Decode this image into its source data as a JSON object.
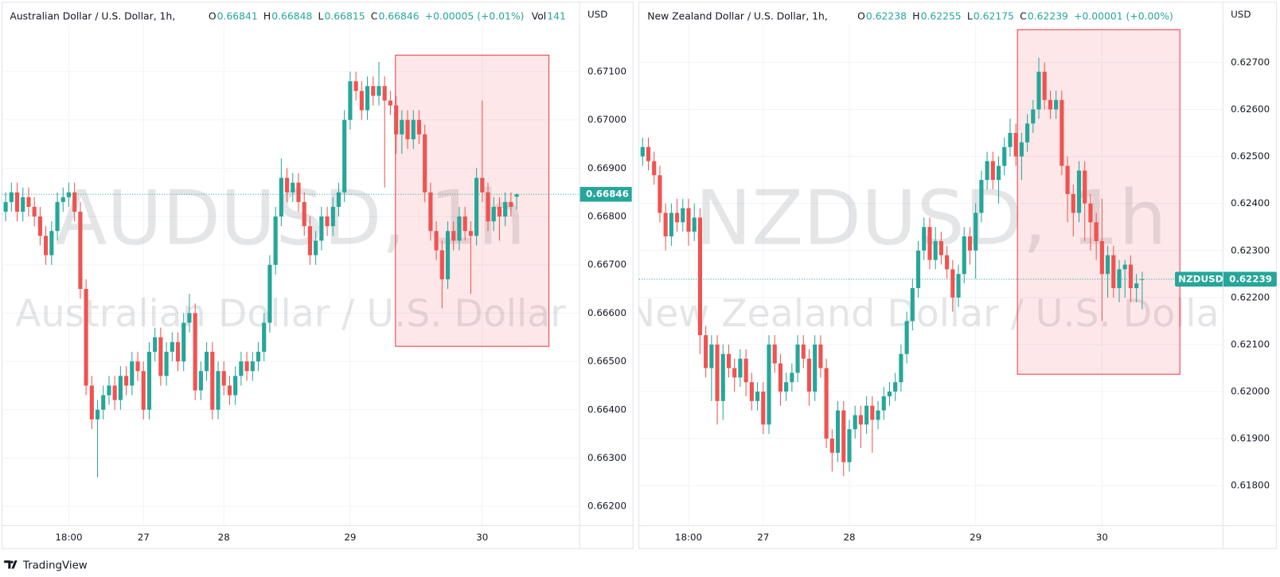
{
  "chart_data": [
    {
      "type": "candlestick",
      "header": "Australian Dollar / U.S. Dollar, 1h,",
      "ohlc_labels": [
        "O",
        "H",
        "L",
        "C"
      ],
      "change": "+0.00005 (+0.01%)",
      "volume_label": "Vol",
      "volume": 141,
      "watermark_symbol": "AUDUSD, 1h",
      "watermark_name": "Australian Dollar / U.S. Dollar",
      "axis_unit": "USD",
      "up_color": "#26a69a",
      "down_color": "#ef5350",
      "grid": true,
      "ylim": [
        0.66161,
        0.67197
      ],
      "xlim": [
        -0.7,
        99.9
      ],
      "yticks": [
        {
          "value": 0.662,
          "label": "0.66200"
        },
        {
          "value": 0.663,
          "label": "0.66300"
        },
        {
          "value": 0.664,
          "label": "0.66400"
        },
        {
          "value": 0.665,
          "label": "0.66500"
        },
        {
          "value": 0.666,
          "label": "0.66600"
        },
        {
          "value": 0.667,
          "label": "0.66700"
        },
        {
          "value": 0.668,
          "label": "0.66800"
        },
        {
          "value": 0.669,
          "label": "0.66900"
        },
        {
          "value": 0.67,
          "label": "0.67000"
        },
        {
          "value": 0.671,
          "label": "0.67100"
        }
      ],
      "xticks": [
        {
          "value": 11,
          "label": "18:00"
        },
        {
          "value": 24,
          "label": "27"
        },
        {
          "value": 38,
          "label": "28"
        },
        {
          "value": 60,
          "label": "29"
        },
        {
          "value": 83,
          "label": "30"
        }
      ],
      "open": [
        0.6681,
        0.6683,
        0.6685,
        0.6681,
        0.6684,
        0.6682,
        0.668,
        0.6676,
        0.6672,
        0.6677,
        0.6683,
        0.6684,
        0.6685,
        0.6681,
        0.6665,
        0.6645,
        0.6638,
        0.664,
        0.6643,
        0.6645,
        0.6642,
        0.6647,
        0.6645,
        0.665,
        0.6648,
        0.664,
        0.6652,
        0.6655,
        0.6647,
        0.6652,
        0.6654,
        0.665,
        0.6658,
        0.666,
        0.6644,
        0.6648,
        0.6652,
        0.664,
        0.6648,
        0.6645,
        0.6643,
        0.6647,
        0.665,
        0.6648,
        0.665,
        0.6652,
        0.6658,
        0.667,
        0.668,
        0.6688,
        0.6685,
        0.6687,
        0.6683,
        0.6678,
        0.6672,
        0.6675,
        0.668,
        0.6678,
        0.6682,
        0.6685,
        0.67,
        0.6708,
        0.6706,
        0.6702,
        0.6707,
        0.6705,
        0.6707,
        0.6704,
        0.6703,
        0.6697,
        0.67,
        0.6696,
        0.67,
        0.6697,
        0.6685,
        0.6677,
        0.6673,
        0.6667,
        0.6677,
        0.6675,
        0.668,
        0.6677,
        0.6676,
        0.6688,
        0.6685,
        0.6679,
        0.6682,
        0.668,
        0.6683,
        0.66841
      ],
      "high": [
        0.6685,
        0.6687,
        0.6687,
        0.6686,
        0.6686,
        0.6684,
        0.6682,
        0.6678,
        0.6679,
        0.6685,
        0.6686,
        0.6687,
        0.6687,
        0.6683,
        0.6667,
        0.6647,
        0.6642,
        0.6645,
        0.6647,
        0.6647,
        0.6649,
        0.6649,
        0.6652,
        0.6652,
        0.665,
        0.6654,
        0.6657,
        0.6657,
        0.6654,
        0.6656,
        0.6656,
        0.666,
        0.6664,
        0.6662,
        0.665,
        0.6654,
        0.6654,
        0.665,
        0.665,
        0.6647,
        0.6649,
        0.6652,
        0.6652,
        0.6652,
        0.6654,
        0.666,
        0.6672,
        0.6682,
        0.6692,
        0.669,
        0.6689,
        0.6689,
        0.6685,
        0.668,
        0.6677,
        0.6682,
        0.6682,
        0.6684,
        0.6687,
        0.6702,
        0.671,
        0.671,
        0.6708,
        0.6709,
        0.6709,
        0.6712,
        0.6709,
        0.6706,
        0.6705,
        0.6702,
        0.6702,
        0.6702,
        0.6702,
        0.6699,
        0.6687,
        0.6679,
        0.6675,
        0.6679,
        0.6679,
        0.6682,
        0.6682,
        0.6679,
        0.669,
        0.6704,
        0.6687,
        0.6684,
        0.6684,
        0.6685,
        0.6685,
        0.66848
      ],
      "low": [
        0.6679,
        0.6681,
        0.6679,
        0.6679,
        0.668,
        0.6678,
        0.6674,
        0.667,
        0.667,
        0.6675,
        0.6681,
        0.6682,
        0.6679,
        0.6663,
        0.6643,
        0.6636,
        0.6626,
        0.6638,
        0.6641,
        0.664,
        0.664,
        0.6643,
        0.6643,
        0.6646,
        0.6638,
        0.6638,
        0.665,
        0.6645,
        0.6645,
        0.665,
        0.6648,
        0.6648,
        0.6656,
        0.6642,
        0.6642,
        0.6646,
        0.6638,
        0.6638,
        0.6643,
        0.6641,
        0.6641,
        0.6645,
        0.6646,
        0.6646,
        0.6648,
        0.665,
        0.6656,
        0.6668,
        0.6678,
        0.6683,
        0.6683,
        0.6681,
        0.6676,
        0.667,
        0.667,
        0.6673,
        0.6676,
        0.6676,
        0.668,
        0.6683,
        0.6698,
        0.6704,
        0.67,
        0.67,
        0.6703,
        0.6703,
        0.6686,
        0.6701,
        0.6693,
        0.6693,
        0.6694,
        0.6694,
        0.6695,
        0.6683,
        0.6675,
        0.6671,
        0.6661,
        0.6665,
        0.6673,
        0.6673,
        0.6675,
        0.6664,
        0.6674,
        0.6683,
        0.6677,
        0.6677,
        0.6675,
        0.6678,
        0.668,
        0.66815
      ],
      "close": [
        0.6683,
        0.6685,
        0.6681,
        0.6684,
        0.6682,
        0.668,
        0.6676,
        0.6672,
        0.6677,
        0.6683,
        0.6684,
        0.6685,
        0.6681,
        0.6665,
        0.6645,
        0.6638,
        0.664,
        0.6643,
        0.6645,
        0.6642,
        0.6647,
        0.6645,
        0.665,
        0.6648,
        0.664,
        0.6652,
        0.6655,
        0.6647,
        0.6652,
        0.6654,
        0.665,
        0.6658,
        0.666,
        0.6644,
        0.6648,
        0.6652,
        0.664,
        0.6648,
        0.6645,
        0.6643,
        0.6647,
        0.665,
        0.6648,
        0.665,
        0.6652,
        0.6658,
        0.667,
        0.668,
        0.6688,
        0.6685,
        0.6687,
        0.6683,
        0.6678,
        0.6672,
        0.6675,
        0.668,
        0.6678,
        0.6682,
        0.6685,
        0.67,
        0.6708,
        0.6706,
        0.6702,
        0.6707,
        0.6705,
        0.6707,
        0.6704,
        0.6703,
        0.6697,
        0.67,
        0.6696,
        0.67,
        0.6697,
        0.6685,
        0.6677,
        0.6673,
        0.6667,
        0.6677,
        0.6675,
        0.668,
        0.6677,
        0.6676,
        0.6688,
        0.6685,
        0.6679,
        0.6682,
        0.668,
        0.6683,
        0.6682,
        0.66846
      ]
    },
    {
      "type": "candlestick",
      "header": "New Zealand Dollar / U.S. Dollar, 1h,",
      "ohlc_labels": [
        "O",
        "H",
        "L",
        "C"
      ],
      "change": "+0.00001 (+0.00%)",
      "watermark_symbol": "NZDUSD, 1h",
      "watermark_name": "New Zealand Dollar / U.S. Dollar",
      "axis_unit": "USD",
      "symbol": "NZDUSD",
      "up_color": "#26a69a",
      "down_color": "#ef5350",
      "grid": true,
      "ylim": [
        0.61716,
        0.6278
      ],
      "xlim": [
        -0.6,
        101
      ],
      "yticks": [
        {
          "value": 0.618,
          "label": "0.61800"
        },
        {
          "value": 0.619,
          "label": "0.61900"
        },
        {
          "value": 0.62,
          "label": "0.62000"
        },
        {
          "value": 0.621,
          "label": "0.62100"
        },
        {
          "value": 0.622,
          "label": "0.62200"
        },
        {
          "value": 0.623,
          "label": "0.62300"
        },
        {
          "value": 0.624,
          "label": "0.62400"
        },
        {
          "value": 0.625,
          "label": "0.62500"
        },
        {
          "value": 0.626,
          "label": "0.62600"
        },
        {
          "value": 0.627,
          "label": "0.62700"
        }
      ],
      "xticks": [
        {
          "value": 8,
          "label": "18:00"
        },
        {
          "value": 21,
          "label": "27"
        },
        {
          "value": 36,
          "label": "28"
        },
        {
          "value": 58,
          "label": "29"
        },
        {
          "value": 80,
          "label": "30"
        }
      ],
      "open": [
        0.625,
        0.6252,
        0.6249,
        0.6246,
        0.6238,
        0.6233,
        0.6238,
        0.6236,
        0.6239,
        0.6234,
        0.6237,
        0.6212,
        0.6205,
        0.621,
        0.6198,
        0.6208,
        0.6205,
        0.6203,
        0.6207,
        0.6202,
        0.6198,
        0.62,
        0.6193,
        0.621,
        0.6206,
        0.62,
        0.6202,
        0.6204,
        0.621,
        0.6207,
        0.62,
        0.621,
        0.6205,
        0.619,
        0.6187,
        0.6196,
        0.6185,
        0.6192,
        0.6195,
        0.6193,
        0.6197,
        0.6194,
        0.6196,
        0.6199,
        0.62,
        0.6202,
        0.6208,
        0.6215,
        0.6222,
        0.623,
        0.6235,
        0.6228,
        0.6232,
        0.6229,
        0.6226,
        0.622,
        0.6225,
        0.6233,
        0.623,
        0.6238,
        0.6245,
        0.6249,
        0.6245,
        0.6248,
        0.6252,
        0.6255,
        0.625,
        0.6253,
        0.6257,
        0.626,
        0.6268,
        0.6262,
        0.626,
        0.6262,
        0.6248,
        0.6242,
        0.6238,
        0.6247,
        0.624,
        0.6236,
        0.6232,
        0.6225,
        0.6229,
        0.6222,
        0.6226,
        0.6227,
        0.6222,
        0.62238
      ],
      "high": [
        0.6254,
        0.6254,
        0.6251,
        0.6248,
        0.624,
        0.624,
        0.6241,
        0.6241,
        0.6241,
        0.624,
        0.6239,
        0.6214,
        0.6212,
        0.6212,
        0.621,
        0.621,
        0.6207,
        0.6209,
        0.6209,
        0.6204,
        0.6202,
        0.6202,
        0.6212,
        0.6212,
        0.6208,
        0.6204,
        0.6206,
        0.6212,
        0.6212,
        0.6209,
        0.6212,
        0.6212,
        0.6207,
        0.6192,
        0.6198,
        0.6198,
        0.6194,
        0.6197,
        0.6197,
        0.6199,
        0.6199,
        0.6198,
        0.6201,
        0.6202,
        0.6204,
        0.621,
        0.6217,
        0.6224,
        0.6232,
        0.6237,
        0.6237,
        0.6235,
        0.6234,
        0.6231,
        0.6228,
        0.6227,
        0.6235,
        0.6235,
        0.624,
        0.6247,
        0.6251,
        0.6251,
        0.625,
        0.6254,
        0.6258,
        0.6257,
        0.6255,
        0.6259,
        0.6262,
        0.6271,
        0.627,
        0.6264,
        0.6264,
        0.6264,
        0.625,
        0.6244,
        0.6249,
        0.6249,
        0.6242,
        0.6238,
        0.6241,
        0.6231,
        0.6231,
        0.6228,
        0.6228,
        0.6229,
        0.6225,
        0.62255
      ],
      "low": [
        0.6248,
        0.6247,
        0.6244,
        0.6236,
        0.623,
        0.6231,
        0.6234,
        0.6234,
        0.6231,
        0.6232,
        0.6208,
        0.6203,
        0.6198,
        0.6193,
        0.6194,
        0.6203,
        0.62,
        0.6201,
        0.6199,
        0.6196,
        0.6196,
        0.6191,
        0.6191,
        0.6204,
        0.6197,
        0.6198,
        0.62,
        0.6202,
        0.6205,
        0.6197,
        0.6198,
        0.6203,
        0.6188,
        0.6183,
        0.6185,
        0.6182,
        0.6183,
        0.619,
        0.6188,
        0.6191,
        0.6187,
        0.6192,
        0.6194,
        0.6197,
        0.6198,
        0.62,
        0.6206,
        0.6213,
        0.622,
        0.6228,
        0.6226,
        0.6226,
        0.6227,
        0.6224,
        0.6217,
        0.6218,
        0.6223,
        0.6227,
        0.6224,
        0.6236,
        0.6243,
        0.6243,
        0.624,
        0.6246,
        0.625,
        0.6248,
        0.6245,
        0.6251,
        0.6255,
        0.6258,
        0.626,
        0.6258,
        0.6258,
        0.6246,
        0.6236,
        0.6233,
        0.6236,
        0.6232,
        0.623,
        0.6228,
        0.6215,
        0.622,
        0.622,
        0.6219,
        0.622,
        0.6219,
        0.6219,
        0.62175
      ],
      "close": [
        0.6252,
        0.6249,
        0.6246,
        0.6238,
        0.6233,
        0.6238,
        0.6236,
        0.6239,
        0.6234,
        0.6237,
        0.6212,
        0.6205,
        0.621,
        0.6198,
        0.6208,
        0.6205,
        0.6203,
        0.6207,
        0.6202,
        0.6198,
        0.62,
        0.6193,
        0.621,
        0.6206,
        0.62,
        0.6202,
        0.6204,
        0.621,
        0.6207,
        0.62,
        0.621,
        0.6205,
        0.619,
        0.6187,
        0.6196,
        0.6185,
        0.6192,
        0.6195,
        0.6193,
        0.6197,
        0.6194,
        0.6196,
        0.6199,
        0.62,
        0.6202,
        0.6208,
        0.6215,
        0.6222,
        0.623,
        0.6235,
        0.6228,
        0.6232,
        0.6229,
        0.6226,
        0.622,
        0.6225,
        0.6233,
        0.623,
        0.6238,
        0.6245,
        0.6249,
        0.6245,
        0.6248,
        0.6252,
        0.6255,
        0.625,
        0.6253,
        0.6257,
        0.626,
        0.6268,
        0.6262,
        0.626,
        0.6262,
        0.6248,
        0.6242,
        0.6238,
        0.6247,
        0.624,
        0.6236,
        0.6232,
        0.6225,
        0.6229,
        0.6222,
        0.6226,
        0.6227,
        0.6222,
        0.6223,
        0.62239
      ]
    }
  ],
  "brand": "TradingView"
}
